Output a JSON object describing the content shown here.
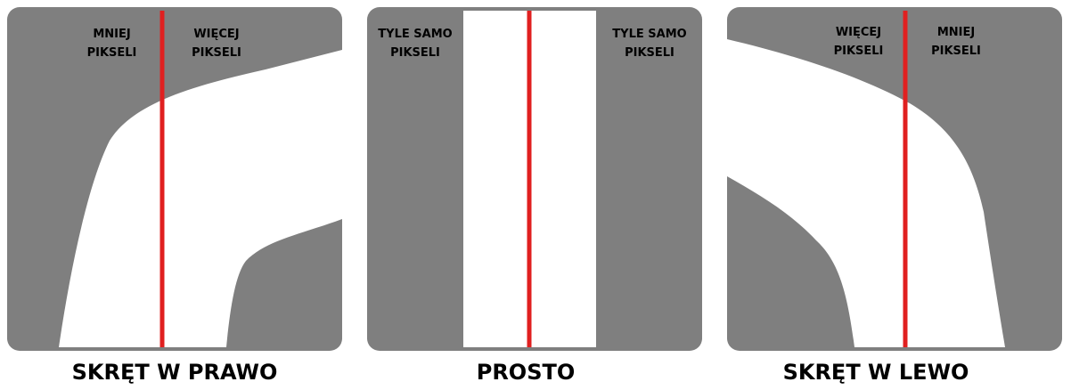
{
  "colors": {
    "track": "#ffffff",
    "background": "#7f7f7f",
    "center_line": "#e02020"
  },
  "panels": [
    {
      "caption": "SKRĘT W PRAWO",
      "left_label": "MNIEJ PIKSELI",
      "right_label": "WIĘCEJ PIKSELI"
    },
    {
      "caption": "PROSTO",
      "left_label": "TYLE SAMO PIKSELI",
      "right_label": "TYLE SAMO PIKSELI"
    },
    {
      "caption": "SKRĘT W LEWO",
      "left_label": "WIĘCEJ PIKSELI",
      "right_label": "MNIEJ PIKSELI"
    }
  ]
}
